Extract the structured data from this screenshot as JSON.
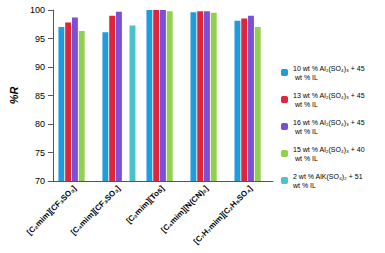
{
  "chart_data": {
    "type": "bar",
    "y_label": "%R",
    "categories": [
      "[C₂mim][CF₃SO₃]",
      "[C₄mim][CF₃SO₃]",
      "[C₂mim][Tos]",
      "[C₄mim][N(CN)₂]",
      "[C₇H₇mim][C₂H₅SO₄]"
    ],
    "series": [
      {
        "name": "10 wt % Al₂(SO₄)₃ + 45 wt % IL",
        "color": "#1f9bde",
        "values": [
          97.0,
          96.1,
          100.0,
          99.6,
          98.1
        ]
      },
      {
        "name": "13 wt % Al₂(SO₄)₃ + 45 wt % IL",
        "color": "#e0253b",
        "values": [
          97.8,
          99.0,
          100.0,
          99.8,
          98.5
        ]
      },
      {
        "name": "16 wt % Al₂(SO₄)₃ + 45 wt % IL",
        "color": "#7b4fd6",
        "values": [
          98.7,
          99.7,
          100.0,
          99.8,
          99.0
        ]
      },
      {
        "name": "15 wt % Al₂(SO₄)₃ + 40 wt % IL",
        "color": "#92d050",
        "values": [
          96.3,
          null,
          99.8,
          99.5,
          97.0
        ]
      },
      {
        "name": "2 wt % AlK(SO₄)₂ + 51 wt % IL",
        "color": "#4bc1c9",
        "values": [
          null,
          97.3,
          null,
          null,
          null
        ]
      }
    ],
    "ylim": [
      70,
      100
    ],
    "yticks": [
      70,
      75,
      80,
      85,
      90,
      95,
      100
    ],
    "grid": false,
    "legend": "right"
  }
}
